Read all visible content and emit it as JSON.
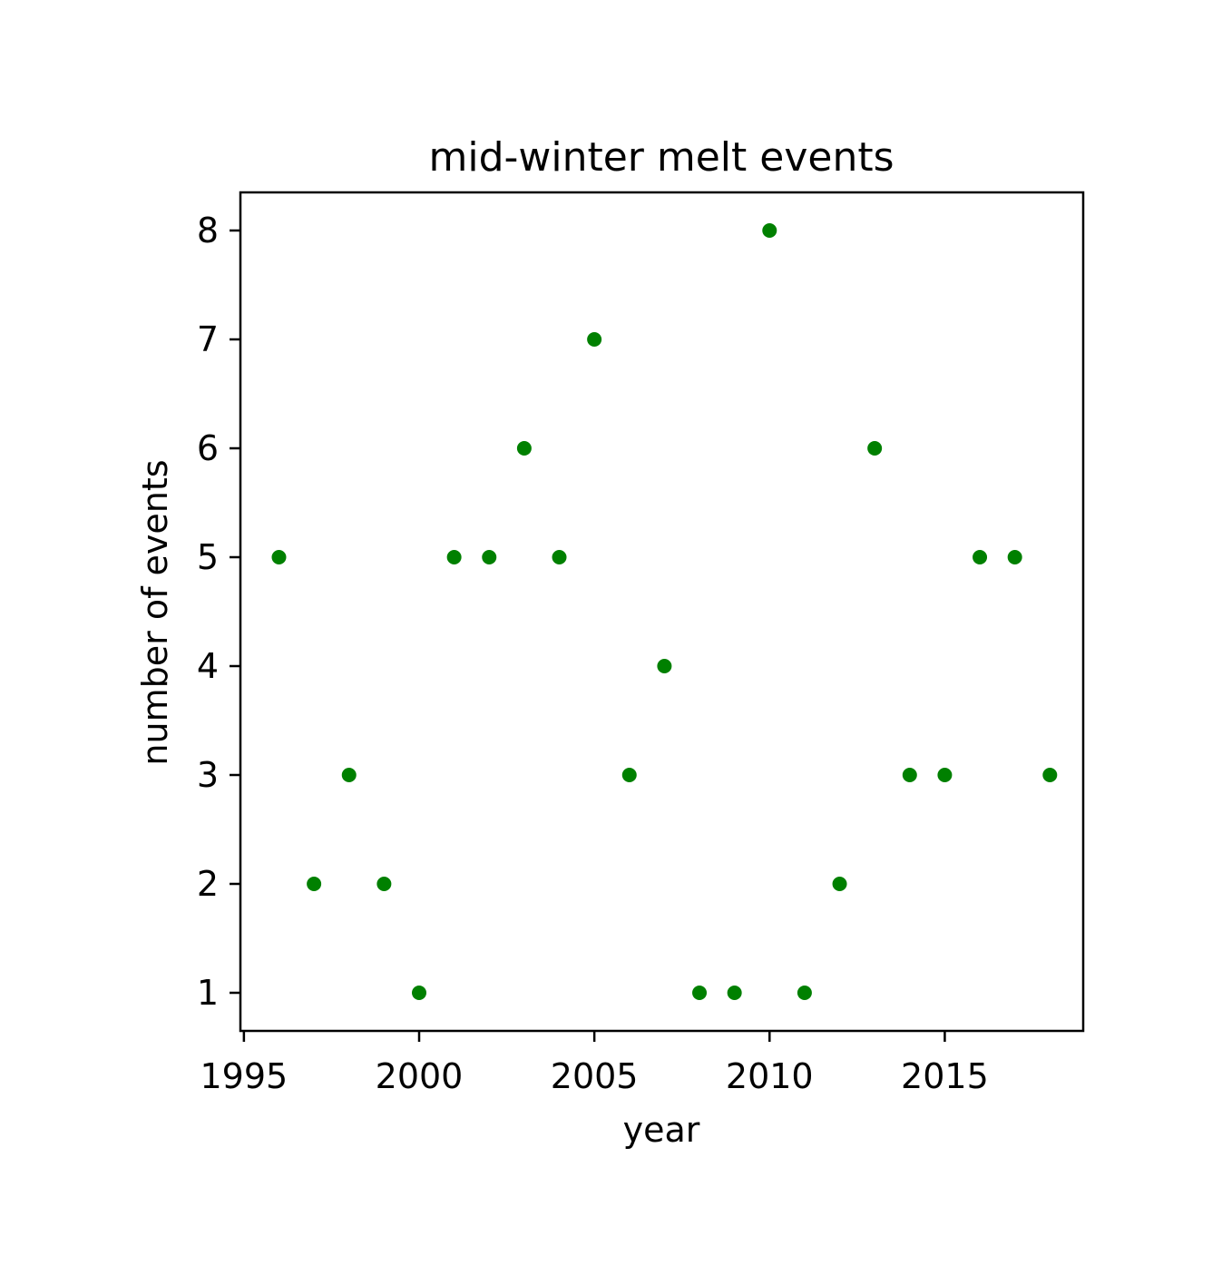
{
  "chart_data": {
    "type": "scatter",
    "title": "mid-winter melt events",
    "xlabel": "year",
    "ylabel": "number of events",
    "xlim": [
      1994.9,
      2018.95
    ],
    "ylim": [
      0.65,
      8.35
    ],
    "xticks": [
      1995,
      2000,
      2005,
      2010,
      2015
    ],
    "yticks": [
      1,
      2,
      3,
      4,
      5,
      6,
      7,
      8
    ],
    "grid": false,
    "marker_color": "#008000",
    "series": [
      {
        "points": [
          {
            "x": 1996,
            "y": 5
          },
          {
            "x": 1997,
            "y": 2
          },
          {
            "x": 1998,
            "y": 3
          },
          {
            "x": 1999,
            "y": 2
          },
          {
            "x": 2000,
            "y": 1
          },
          {
            "x": 2001,
            "y": 5
          },
          {
            "x": 2002,
            "y": 5
          },
          {
            "x": 2003,
            "y": 6
          },
          {
            "x": 2004,
            "y": 5
          },
          {
            "x": 2005,
            "y": 7
          },
          {
            "x": 2006,
            "y": 3
          },
          {
            "x": 2007,
            "y": 4
          },
          {
            "x": 2008,
            "y": 1
          },
          {
            "x": 2009,
            "y": 1
          },
          {
            "x": 2010,
            "y": 8
          },
          {
            "x": 2011,
            "y": 1
          },
          {
            "x": 2012,
            "y": 2
          },
          {
            "x": 2013,
            "y": 6
          },
          {
            "x": 2014,
            "y": 3
          },
          {
            "x": 2015,
            "y": 3
          },
          {
            "x": 2016,
            "y": 5
          },
          {
            "x": 2017,
            "y": 5
          },
          {
            "x": 2018,
            "y": 3
          }
        ]
      }
    ]
  }
}
